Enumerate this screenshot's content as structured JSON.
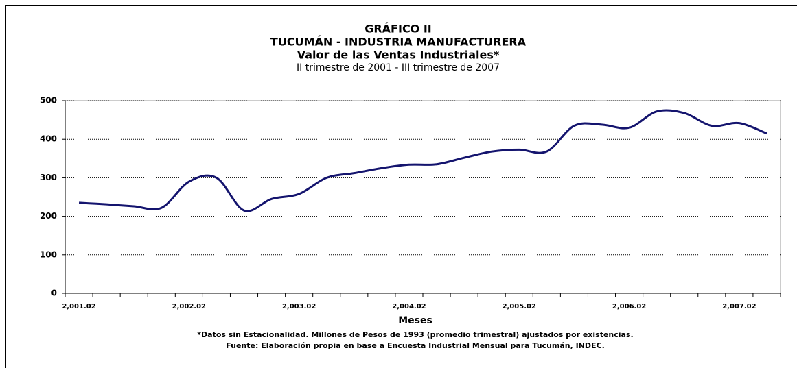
{
  "chart_data": {
    "type": "line",
    "title": "GRÁFICO II",
    "title2": "TUCUMÁN - INDUSTRIA MANUFACTURERA",
    "title3": "Valor de las Ventas Industriales*",
    "subtitle": "II trimestre de 2001 - III trimestre de 2007",
    "x_label": "Meses",
    "notes": [
      "*Datos sin Estacionalidad. Millones de Pesos de 1993 (promedio trimestral) ajustados por existencias.",
      "Fuente: Elaboración propia en base a Encuesta Industrial Mensual para Tucumán, INDEC."
    ],
    "categories": [
      "2,001.02",
      null,
      null,
      null,
      "2,002.02",
      null,
      null,
      null,
      "2,003.02",
      null,
      null,
      null,
      "2,004.02",
      null,
      null,
      null,
      "2,005.02",
      null,
      null,
      null,
      "2,006.02",
      null,
      null,
      null,
      "2,007.02",
      null
    ],
    "series": [
      {
        "name": "Valor de las Ventas Industriales",
        "color": "#14146e",
        "values": [
          235,
          231,
          226,
          222,
          290,
          300,
          215,
          245,
          258,
          300,
          312,
          325,
          334,
          335,
          352,
          368,
          373,
          368,
          435,
          438,
          430,
          472,
          468,
          435,
          442,
          415
        ]
      }
    ],
    "ylim": [
      0,
      500
    ],
    "yticks": [
      0,
      100,
      200,
      300,
      400,
      500
    ],
    "grid": true
  }
}
